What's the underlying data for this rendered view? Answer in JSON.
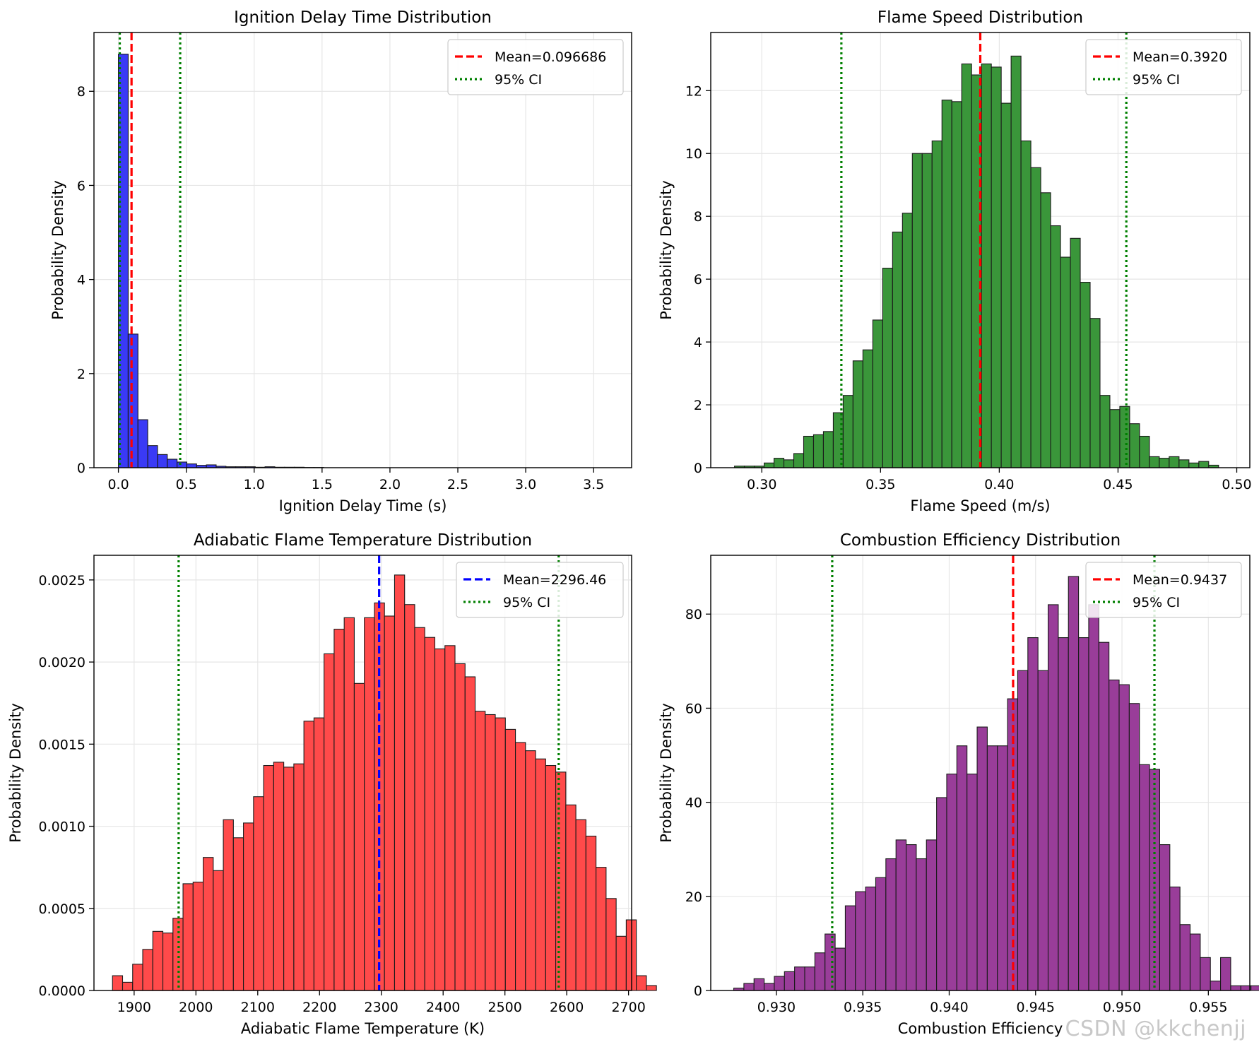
{
  "figure": {
    "watermark": "CSDN @kkchenjj"
  },
  "chart_data": [
    {
      "type": "histogram",
      "title": "Ignition Delay Time Distribution",
      "xlabel": "Ignition Delay Time (s)",
      "ylabel": "Probability Density",
      "xlim": [
        -0.18,
        3.78
      ],
      "ylim": [
        0,
        9.25
      ],
      "xticks": [
        0.0,
        0.5,
        1.0,
        1.5,
        2.0,
        2.5,
        3.0,
        3.5
      ],
      "xtick_labels": [
        "0.0",
        "0.5",
        "1.0",
        "1.5",
        "2.0",
        "2.5",
        "3.0",
        "3.5"
      ],
      "yticks": [
        0,
        2,
        4,
        6,
        8
      ],
      "ytick_labels": [
        "0",
        "2",
        "4",
        "6",
        "8"
      ],
      "bin_start": 0.0,
      "bin_width": 0.072,
      "values": [
        8.79,
        2.84,
        1.02,
        0.47,
        0.28,
        0.18,
        0.12,
        0.08,
        0.05,
        0.06,
        0.03,
        0.02,
        0.02,
        0.02,
        0.01,
        0.02,
        0.01,
        0.01,
        0.01,
        0.005,
        0.005
      ],
      "bar_color": "#3a3af5",
      "mean": 0.096686,
      "mean_color": "#ff0000",
      "ci": [
        0.01,
        0.455
      ],
      "ci_color": "#008000",
      "legend": {
        "position": "upper right",
        "mean_label": "Mean=0.096686",
        "ci_label": "95% CI"
      }
    },
    {
      "type": "histogram",
      "title": "Flame Speed Distribution",
      "xlabel": "Flame Speed (m/s)",
      "ylabel": "Probability Density",
      "xlim": [
        0.2785,
        0.5055
      ],
      "ylim": [
        0,
        13.85
      ],
      "xticks": [
        0.3,
        0.35,
        0.4,
        0.45,
        0.5
      ],
      "xtick_labels": [
        "0.30",
        "0.35",
        "0.40",
        "0.45",
        "0.50"
      ],
      "yticks": [
        0,
        2,
        4,
        6,
        8,
        10,
        12
      ],
      "ytick_labels": [
        "0",
        "2",
        "4",
        "6",
        "8",
        "10",
        "12"
      ],
      "bin_start": 0.2885,
      "bin_width": 0.00416,
      "values": [
        0.05,
        0.05,
        0.05,
        0.15,
        0.3,
        0.25,
        0.45,
        1.0,
        1.05,
        1.15,
        1.75,
        2.3,
        3.4,
        3.75,
        4.7,
        6.35,
        7.5,
        8.1,
        10.0,
        10.0,
        10.4,
        11.7,
        11.65,
        12.85,
        12.5,
        12.85,
        12.75,
        11.6,
        13.1,
        10.4,
        9.55,
        8.75,
        7.7,
        6.7,
        7.3,
        5.9,
        4.75,
        2.3,
        1.85,
        1.95,
        1.4,
        1.0,
        0.35,
        0.3,
        0.35,
        0.25,
        0.15,
        0.2,
        0.08
      ],
      "bar_color": "#3a963a",
      "mean": 0.392,
      "mean_color": "#ff0000",
      "ci": [
        0.3335,
        0.4535
      ],
      "ci_color": "#008000",
      "legend": {
        "position": "upper right",
        "mean_label": "Mean=0.3920",
        "ci_label": "95% CI"
      }
    },
    {
      "type": "histogram",
      "title": "Adiabatic Flame Temperature Distribution",
      "xlabel": "Adiabatic Flame Temperature (K)",
      "ylabel": "Probability Density",
      "xlim": [
        1835,
        2705
      ],
      "ylim": [
        0,
        0.00265
      ],
      "xticks": [
        1900,
        2000,
        2100,
        2200,
        2300,
        2400,
        2500,
        2600,
        2700
      ],
      "xtick_labels": [
        "1900",
        "2000",
        "2100",
        "2200",
        "2300",
        "2400",
        "2500",
        "2600",
        "2700"
      ],
      "yticks": [
        0,
        0.0005,
        0.001,
        0.0015,
        0.002,
        0.0025
      ],
      "ytick_labels": [
        "0.0000",
        "0.0005",
        "0.0010",
        "0.0015",
        "0.0020",
        "0.0025"
      ],
      "bin_start": 1865,
      "bin_width": 16.3,
      "values": [
        9e-05,
        5e-05,
        0.00016,
        0.00025,
        0.00036,
        0.00035,
        0.00044,
        0.00065,
        0.00066,
        0.00081,
        0.00073,
        0.00104,
        0.00093,
        0.00102,
        0.00118,
        0.00137,
        0.00139,
        0.00136,
        0.00138,
        0.00164,
        0.00166,
        0.00205,
        0.0022,
        0.00227,
        0.00187,
        0.00227,
        0.00236,
        0.00228,
        0.00253,
        0.00235,
        0.00221,
        0.00215,
        0.00208,
        0.0021,
        0.00199,
        0.00191,
        0.0017,
        0.00168,
        0.00166,
        0.00159,
        0.00151,
        0.00146,
        0.00141,
        0.00137,
        0.00133,
        0.00113,
        0.00104,
        0.00094,
        0.00075,
        0.00056,
        0.00033,
        0.00043,
        9e-05,
        3e-05
      ],
      "bar_color": "#ff4a4a",
      "mean": 2296.46,
      "mean_color": "#0000ff",
      "ci": [
        1972,
        2587
      ],
      "ci_color": "#008000",
      "legend": {
        "position": "upper right",
        "mean_label": "Mean=2296.46",
        "ci_label": "95% CI"
      }
    },
    {
      "type": "histogram",
      "title": "Combustion Efficiency Distribution",
      "xlabel": "Combustion Efficiency",
      "ylabel": "Probability Density",
      "xlim": [
        0.9262,
        0.9574
      ],
      "ylim": [
        0,
        92.5
      ],
      "xticks": [
        0.93,
        0.935,
        0.94,
        0.945,
        0.95,
        0.955
      ],
      "xtick_labels": [
        "0.930",
        "0.935",
        "0.940",
        "0.945",
        "0.950",
        "0.955"
      ],
      "yticks": [
        0,
        20,
        40,
        60,
        80
      ],
      "ytick_labels": [
        "0",
        "20",
        "40",
        "60",
        "80"
      ],
      "bin_start": 0.92753,
      "bin_width": 0.000587,
      "values": [
        0.5,
        1.5,
        2.5,
        1.5,
        3,
        4,
        5,
        5,
        8,
        12,
        9,
        18,
        21,
        22,
        24,
        28,
        32,
        31,
        28,
        32,
        41,
        46,
        52,
        46,
        56,
        52,
        52,
        62,
        68,
        75,
        68,
        82,
        75,
        88,
        75,
        82,
        74,
        66,
        65,
        61,
        48,
        47,
        31,
        22,
        14,
        12,
        7,
        2,
        7,
        1,
        1,
        1
      ],
      "bar_color": "#993d99",
      "mean": 0.9437,
      "mean_color": "#ff0000",
      "ci": [
        0.93323,
        0.95188
      ],
      "ci_color": "#008000",
      "legend": {
        "position": "upper right",
        "mean_label": "Mean=0.9437",
        "ci_label": "95% CI"
      }
    }
  ]
}
